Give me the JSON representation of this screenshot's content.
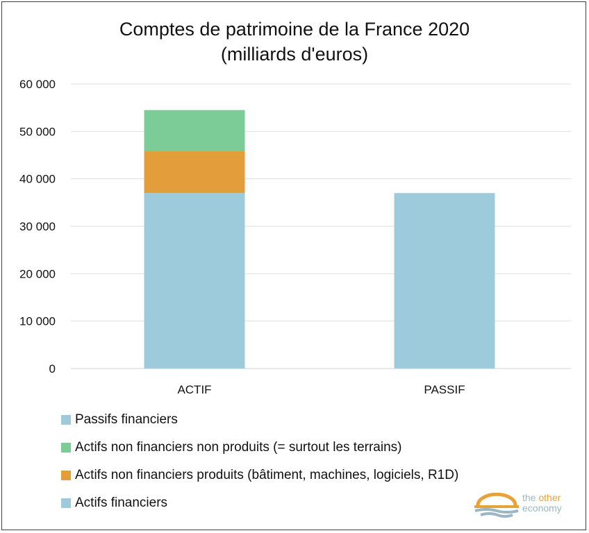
{
  "title_line1": "Comptes de patrimoine de la France 2020",
  "title_line2": "(milliards d'euros)",
  "chart_data": {
    "type": "bar",
    "stacked": true,
    "categories": [
      "ACTIF",
      "PASSIF"
    ],
    "series": [
      {
        "name": "Actifs financiers",
        "values": [
          37000,
          0
        ],
        "color": "#9ecbdb"
      },
      {
        "name": "Actifs non financiers produits (bâtiment, machines, logiciels, R1D)",
        "values": [
          8800,
          0
        ],
        "color": "#e49d3b"
      },
      {
        "name": "Actifs non financiers non produits (= surtout les terrains)",
        "values": [
          8700,
          0
        ],
        "color": "#7ccc98"
      },
      {
        "name": "Passifs financiers",
        "values": [
          0,
          37000
        ],
        "color": "#9ecbdb"
      }
    ],
    "ylim": [
      0,
      60000
    ],
    "yticks": [
      0,
      10000,
      20000,
      30000,
      40000,
      50000,
      60000
    ],
    "ytick_labels": [
      "0",
      "10 000",
      "20 000",
      "30 000",
      "40 000",
      "50 000",
      "60 000"
    ],
    "grid": true,
    "legend_position": "bottom",
    "legend_order": [
      "Passifs financiers",
      "Actifs non financiers non produits (= surtout les terrains)",
      "Actifs non financiers produits (bâtiment, machines, logiciels, R1D)",
      "Actifs financiers"
    ]
  },
  "logo": {
    "word1": "the",
    "word2": "other",
    "word3": "economy",
    "colors": {
      "gold": "#e7a33b",
      "blue": "#9bb7c6"
    }
  }
}
